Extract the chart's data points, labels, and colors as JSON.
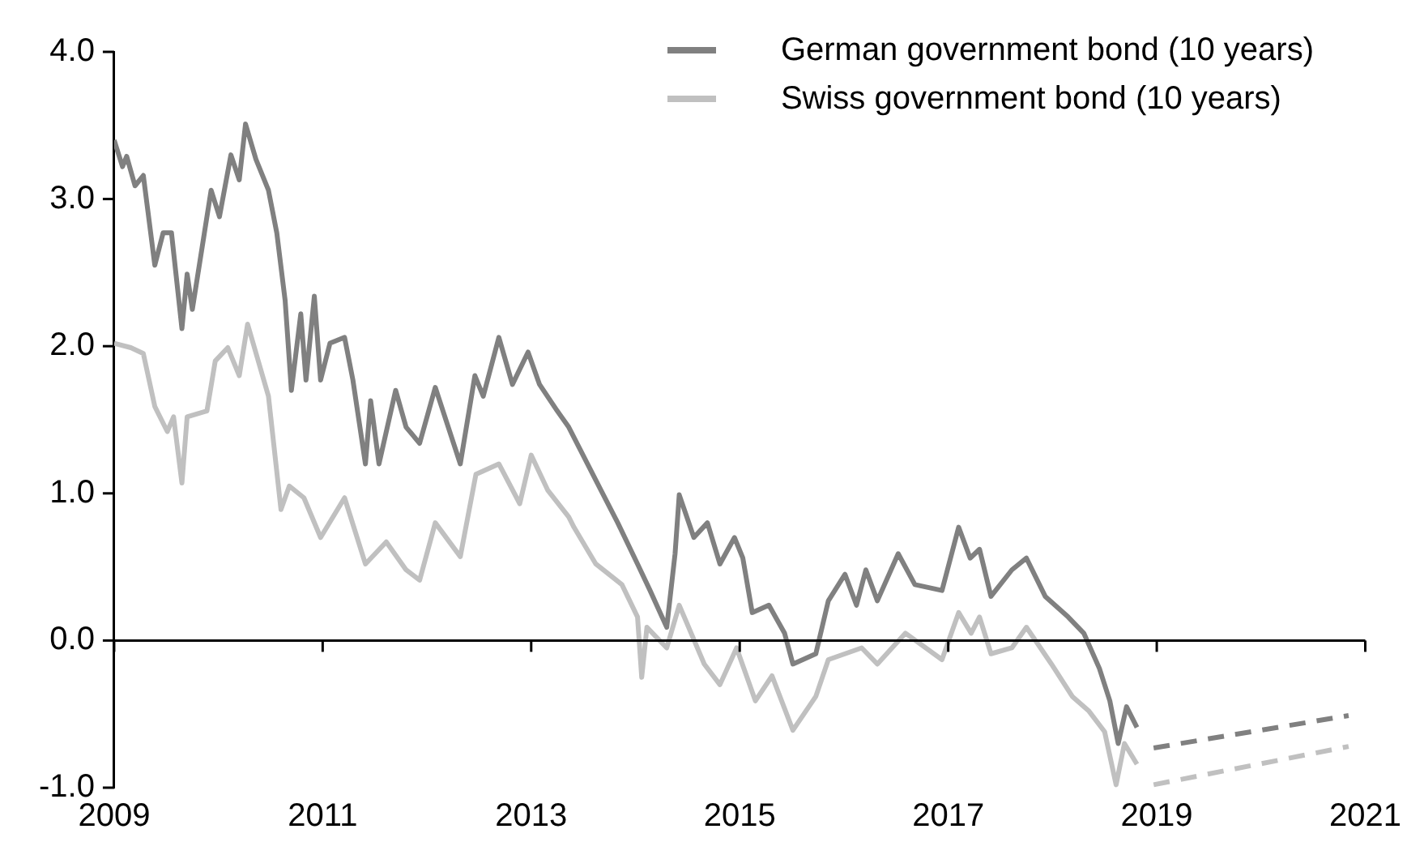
{
  "chart_data": {
    "type": "line",
    "xlim": [
      2009,
      2021
    ],
    "xticks": [
      2009,
      2011,
      2013,
      2015,
      2017,
      2019,
      2021
    ],
    "ylim": [
      -1,
      4
    ],
    "yticks": [
      {
        "value": -1,
        "label": "-1.0"
      },
      {
        "value": 0,
        "label": "0.0"
      },
      {
        "value": 1,
        "label": "1.0"
      },
      {
        "value": 2,
        "label": "2.0"
      },
      {
        "value": 3,
        "label": "3.0"
      },
      {
        "value": 4,
        "label": "4.0"
      }
    ],
    "legend": "top right",
    "marker": "none",
    "series": [
      {
        "name": "German government bond (10 years)",
        "color": "#808080",
        "line_style": "solid",
        "x": [
          2009.0,
          2009.08,
          2009.12,
          2009.2,
          2009.28,
          2009.39,
          2009.47,
          2009.55,
          2009.65,
          2009.7,
          2009.75,
          2009.93,
          2010.01,
          2010.12,
          2010.2,
          2010.26,
          2010.36,
          2010.48,
          2010.56,
          2010.64,
          2010.7,
          2010.79,
          2010.84,
          2010.92,
          2010.98,
          2011.07,
          2011.21,
          2011.29,
          2011.41,
          2011.46,
          2011.54,
          2011.7,
          2011.8,
          2011.93,
          2012.08,
          2012.32,
          2012.46,
          2012.54,
          2012.69,
          2012.82,
          2012.97,
          2013.08,
          2013.25,
          2013.36,
          2013.67,
          2013.83,
          2014.02,
          2014.14,
          2014.3,
          2014.38,
          2014.42,
          2014.56,
          2014.69,
          2014.81,
          2014.95,
          2015.03,
          2015.12,
          2015.28,
          2015.43,
          2015.51,
          2015.73,
          2015.85,
          2016.01,
          2016.12,
          2016.21,
          2016.32,
          2016.52,
          2016.68,
          2016.94,
          2017.1,
          2017.21,
          2017.3,
          2017.41,
          2017.61,
          2017.75,
          2017.93,
          2018.15,
          2018.3,
          2018.45,
          2018.55,
          2018.63,
          2018.71,
          2018.81
        ],
        "values": [
          3.4,
          3.22,
          3.29,
          3.09,
          3.16,
          2.55,
          2.77,
          2.77,
          2.12,
          2.49,
          2.25,
          3.06,
          2.88,
          3.3,
          3.13,
          3.51,
          3.27,
          3.06,
          2.77,
          2.31,
          1.7,
          2.22,
          1.77,
          2.34,
          1.77,
          2.02,
          2.06,
          1.77,
          1.2,
          1.63,
          1.2,
          1.7,
          1.45,
          1.34,
          1.72,
          1.2,
          1.8,
          1.66,
          2.06,
          1.74,
          1.96,
          1.74,
          1.56,
          1.45,
          1.02,
          0.8,
          0.52,
          0.34,
          0.09,
          0.59,
          0.99,
          0.7,
          0.8,
          0.52,
          0.7,
          0.56,
          0.19,
          0.24,
          0.05,
          -0.16,
          -0.09,
          0.27,
          0.45,
          0.24,
          0.48,
          0.27,
          0.59,
          0.38,
          0.34,
          0.77,
          0.56,
          0.62,
          0.3,
          0.48,
          0.56,
          0.3,
          0.16,
          0.05,
          -0.19,
          -0.41,
          -0.7,
          -0.45,
          -0.59
        ]
      },
      {
        "name": "Swiss government bond (10 years)",
        "color": "#c0c0c0",
        "line_style": "solid",
        "x": [
          2009.0,
          2009.16,
          2009.28,
          2009.39,
          2009.51,
          2009.57,
          2009.65,
          2009.7,
          2009.89,
          2009.97,
          2010.09,
          2010.2,
          2010.28,
          2010.48,
          2010.6,
          2010.68,
          2010.82,
          2010.98,
          2011.21,
          2011.41,
          2011.61,
          2011.8,
          2011.93,
          2012.08,
          2012.32,
          2012.47,
          2012.69,
          2012.89,
          2013.0,
          2013.16,
          2013.36,
          2013.41,
          2013.62,
          2013.87,
          2014.02,
          2014.06,
          2014.11,
          2014.3,
          2014.42,
          2014.66,
          2014.81,
          2014.97,
          2015.15,
          2015.31,
          2015.51,
          2015.73,
          2015.85,
          2016.17,
          2016.32,
          2016.59,
          2016.94,
          2017.1,
          2017.22,
          2017.3,
          2017.41,
          2017.61,
          2017.75,
          2017.99,
          2018.19,
          2018.35,
          2018.5,
          2018.61,
          2018.69,
          2018.81
        ],
        "values": [
          2.02,
          1.99,
          1.95,
          1.59,
          1.42,
          1.52,
          1.07,
          1.52,
          1.56,
          1.9,
          1.99,
          1.8,
          2.15,
          1.66,
          0.89,
          1.05,
          0.97,
          0.7,
          0.97,
          0.52,
          0.67,
          0.48,
          0.41,
          0.8,
          0.57,
          1.13,
          1.2,
          0.93,
          1.26,
          1.02,
          0.84,
          0.77,
          0.52,
          0.38,
          0.16,
          -0.25,
          0.09,
          -0.05,
          0.24,
          -0.16,
          -0.3,
          -0.05,
          -0.41,
          -0.24,
          -0.61,
          -0.38,
          -0.13,
          -0.05,
          -0.16,
          0.05,
          -0.13,
          0.19,
          0.05,
          0.16,
          -0.09,
          -0.05,
          0.09,
          -0.16,
          -0.38,
          -0.48,
          -0.62,
          -0.98,
          -0.7,
          -0.84
        ]
      },
      {
        "color": "#808080",
        "line_style": "dashed",
        "x": [
          2018.97,
          2020.84
        ],
        "values": [
          -0.73,
          -0.51
        ]
      },
      {
        "color": "#c0c0c0",
        "line_style": "dashed",
        "x": [
          2018.97,
          2020.84
        ],
        "values": [
          -0.98,
          -0.72
        ]
      }
    ]
  }
}
